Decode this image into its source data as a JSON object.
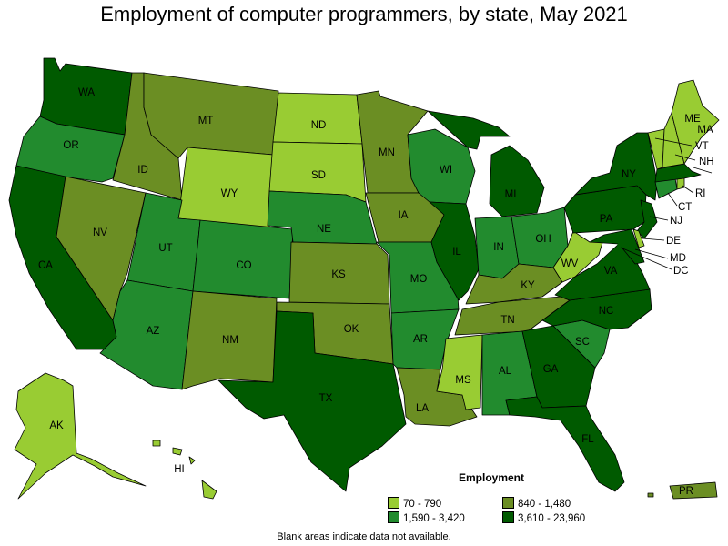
{
  "title": "Employment of computer programmers, by state, May 2021",
  "footnote": "Blank areas indicate data not available.",
  "legend": {
    "title": "Employment",
    "items": [
      {
        "label": "70 - 790",
        "color": "#99cc33"
      },
      {
        "label": "840 - 1,480",
        "color": "#6b8e23"
      },
      {
        "label": "1,590 - 3,420",
        "color": "#228b2e"
      },
      {
        "label": "3,610 - 23,960",
        "color": "#005a00"
      }
    ]
  },
  "states": {
    "WA": {
      "label": "WA",
      "tier": 3
    },
    "OR": {
      "label": "OR",
      "tier": 2
    },
    "CA": {
      "label": "CA",
      "tier": 3
    },
    "NV": {
      "label": "NV",
      "tier": 1
    },
    "ID": {
      "label": "ID",
      "tier": 1
    },
    "MT": {
      "label": "MT",
      "tier": 1
    },
    "WY": {
      "label": "WY",
      "tier": 0
    },
    "UT": {
      "label": "UT",
      "tier": 2
    },
    "AZ": {
      "label": "AZ",
      "tier": 2
    },
    "CO": {
      "label": "CO",
      "tier": 2
    },
    "NM": {
      "label": "NM",
      "tier": 1
    },
    "ND": {
      "label": "ND",
      "tier": 0
    },
    "SD": {
      "label": "SD",
      "tier": 0
    },
    "NE": {
      "label": "NE",
      "tier": 2
    },
    "KS": {
      "label": "KS",
      "tier": 1
    },
    "OK": {
      "label": "OK",
      "tier": 1
    },
    "TX": {
      "label": "TX",
      "tier": 3
    },
    "MN": {
      "label": "MN",
      "tier": 1
    },
    "IA": {
      "label": "IA",
      "tier": 1
    },
    "MO": {
      "label": "MO",
      "tier": 2
    },
    "AR": {
      "label": "AR",
      "tier": 2
    },
    "LA": {
      "label": "LA",
      "tier": 1
    },
    "WI": {
      "label": "WI",
      "tier": 2
    },
    "IL": {
      "label": "IL",
      "tier": 3
    },
    "MI": {
      "label": "MI",
      "tier": 3
    },
    "IN": {
      "label": "IN",
      "tier": 2
    },
    "OH": {
      "label": "OH",
      "tier": 2
    },
    "KY": {
      "label": "KY",
      "tier": 1
    },
    "TN": {
      "label": "TN",
      "tier": 1
    },
    "MS": {
      "label": "MS",
      "tier": 0
    },
    "AL": {
      "label": "AL",
      "tier": 2
    },
    "GA": {
      "label": "GA",
      "tier": 3
    },
    "FL": {
      "label": "FL",
      "tier": 3
    },
    "SC": {
      "label": "SC",
      "tier": 2
    },
    "NC": {
      "label": "NC",
      "tier": 3
    },
    "VA": {
      "label": "VA",
      "tier": 3
    },
    "WV": {
      "label": "WV",
      "tier": 0
    },
    "PA": {
      "label": "PA",
      "tier": 3
    },
    "NY": {
      "label": "NY",
      "tier": 3
    },
    "NJ": {
      "label": "NJ",
      "tier": 3
    },
    "DE": {
      "label": "DE",
      "tier": 0
    },
    "MD": {
      "label": "MD",
      "tier": 3
    },
    "DC": {
      "label": "DC",
      "tier": 3
    },
    "CT": {
      "label": "CT",
      "tier": 2
    },
    "RI": {
      "label": "RI",
      "tier": 0
    },
    "MA": {
      "label": "MA",
      "tier": 3
    },
    "VT": {
      "label": "VT",
      "tier": 0
    },
    "NH": {
      "label": "NH",
      "tier": 0
    },
    "ME": {
      "label": "ME",
      "tier": 0
    },
    "AK": {
      "label": "AK",
      "tier": 0
    },
    "HI": {
      "label": "HI",
      "tier": 0
    },
    "PR": {
      "label": "PR",
      "tier": 1
    }
  }
}
